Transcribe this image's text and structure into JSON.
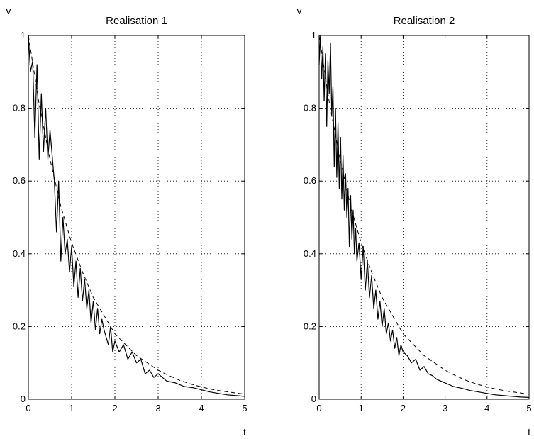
{
  "chart_data": [
    {
      "type": "line",
      "title": "Realisation 1",
      "xlabel": "t",
      "ylabel": "v",
      "xlim": [
        0,
        5
      ],
      "ylim": [
        0,
        1
      ],
      "xticks": [
        "0",
        "1",
        "2",
        "3",
        "4",
        "5"
      ],
      "yticks": [
        "0",
        "0.2",
        "0.4",
        "0.6",
        "0.8",
        "1"
      ],
      "grid": true,
      "series": [
        {
          "style": "dashed",
          "x": [
            0,
            0.25,
            0.5,
            0.75,
            1,
            1.25,
            1.5,
            1.75,
            2,
            2.25,
            2.5,
            2.75,
            3,
            3.25,
            3.5,
            3.75,
            4,
            4.25,
            4.5,
            4.75,
            5
          ],
          "values": [
            1.0,
            0.81,
            0.66,
            0.53,
            0.43,
            0.35,
            0.28,
            0.23,
            0.18,
            0.15,
            0.12,
            0.1,
            0.08,
            0.065,
            0.052,
            0.042,
            0.034,
            0.027,
            0.022,
            0.018,
            0.014
          ]
        },
        {
          "style": "solid",
          "x": [
            0,
            0.05,
            0.1,
            0.15,
            0.2,
            0.25,
            0.3,
            0.35,
            0.4,
            0.45,
            0.5,
            0.55,
            0.6,
            0.65,
            0.7,
            0.75,
            0.8,
            0.85,
            0.9,
            0.95,
            1.0,
            1.05,
            1.1,
            1.15,
            1.2,
            1.25,
            1.3,
            1.35,
            1.4,
            1.45,
            1.5,
            1.55,
            1.6,
            1.65,
            1.7,
            1.75,
            1.8,
            1.85,
            1.9,
            1.95,
            2.0,
            2.1,
            2.2,
            2.3,
            2.4,
            2.5,
            2.6,
            2.7,
            2.8,
            2.9,
            3.0,
            3.2,
            3.4,
            3.6,
            3.8,
            4.0,
            4.2,
            4.4,
            4.6,
            4.8,
            5.0
          ],
          "values": [
            1.0,
            0.9,
            0.93,
            0.72,
            0.92,
            0.66,
            0.84,
            0.68,
            0.8,
            0.66,
            0.74,
            0.67,
            0.6,
            0.46,
            0.6,
            0.38,
            0.5,
            0.4,
            0.44,
            0.35,
            0.42,
            0.31,
            0.38,
            0.28,
            0.36,
            0.27,
            0.33,
            0.25,
            0.3,
            0.21,
            0.27,
            0.19,
            0.25,
            0.18,
            0.22,
            0.19,
            0.17,
            0.15,
            0.2,
            0.13,
            0.16,
            0.13,
            0.15,
            0.11,
            0.13,
            0.1,
            0.11,
            0.07,
            0.08,
            0.06,
            0.07,
            0.05,
            0.045,
            0.035,
            0.032,
            0.026,
            0.02,
            0.016,
            0.012,
            0.01,
            0.008
          ]
        }
      ]
    },
    {
      "type": "line",
      "title": "Realisation 2",
      "xlabel": "t",
      "ylabel": "v",
      "xlim": [
        0,
        5
      ],
      "ylim": [
        0,
        1
      ],
      "xticks": [
        "0",
        "1",
        "2",
        "3",
        "4",
        "5"
      ],
      "yticks": [
        "0",
        "0.2",
        "0.4",
        "0.6",
        "0.8",
        "1"
      ],
      "grid": true,
      "series": [
        {
          "style": "dashed",
          "x": [
            0,
            0.25,
            0.5,
            0.75,
            1,
            1.25,
            1.5,
            1.75,
            2,
            2.25,
            2.5,
            2.75,
            3,
            3.25,
            3.5,
            3.75,
            4,
            4.25,
            4.5,
            4.75,
            5
          ],
          "values": [
            1.0,
            0.81,
            0.66,
            0.53,
            0.43,
            0.35,
            0.28,
            0.23,
            0.18,
            0.15,
            0.12,
            0.1,
            0.08,
            0.065,
            0.052,
            0.042,
            0.034,
            0.027,
            0.022,
            0.018,
            0.014
          ]
        },
        {
          "style": "solid",
          "x": [
            0,
            0.03,
            0.06,
            0.09,
            0.12,
            0.15,
            0.18,
            0.21,
            0.24,
            0.27,
            0.3,
            0.33,
            0.36,
            0.39,
            0.42,
            0.45,
            0.48,
            0.51,
            0.54,
            0.57,
            0.6,
            0.63,
            0.66,
            0.69,
            0.72,
            0.75,
            0.78,
            0.81,
            0.84,
            0.87,
            0.9,
            0.95,
            1.0,
            1.05,
            1.1,
            1.15,
            1.2,
            1.25,
            1.3,
            1.35,
            1.4,
            1.45,
            1.5,
            1.55,
            1.6,
            1.65,
            1.7,
            1.75,
            1.8,
            1.85,
            1.9,
            1.95,
            2.0,
            2.1,
            2.2,
            2.3,
            2.4,
            2.5,
            2.6,
            2.7,
            2.8,
            2.9,
            3.0,
            3.2,
            3.4,
            3.6,
            3.8,
            4.0,
            4.2,
            4.4,
            4.6,
            4.8,
            5.0
          ],
          "values": [
            0.92,
            1.0,
            0.88,
            0.97,
            0.82,
            0.95,
            0.75,
            0.93,
            0.84,
            0.98,
            0.78,
            0.86,
            0.64,
            0.8,
            0.61,
            0.76,
            0.58,
            0.72,
            0.55,
            0.67,
            0.52,
            0.62,
            0.5,
            0.58,
            0.42,
            0.56,
            0.44,
            0.52,
            0.4,
            0.47,
            0.38,
            0.43,
            0.33,
            0.42,
            0.3,
            0.38,
            0.28,
            0.34,
            0.25,
            0.3,
            0.22,
            0.27,
            0.2,
            0.25,
            0.18,
            0.21,
            0.16,
            0.19,
            0.14,
            0.17,
            0.12,
            0.15,
            0.13,
            0.12,
            0.1,
            0.11,
            0.08,
            0.09,
            0.07,
            0.065,
            0.055,
            0.05,
            0.045,
            0.035,
            0.03,
            0.024,
            0.02,
            0.016,
            0.012,
            0.01,
            0.008,
            0.006,
            0.005
          ]
        }
      ]
    }
  ]
}
